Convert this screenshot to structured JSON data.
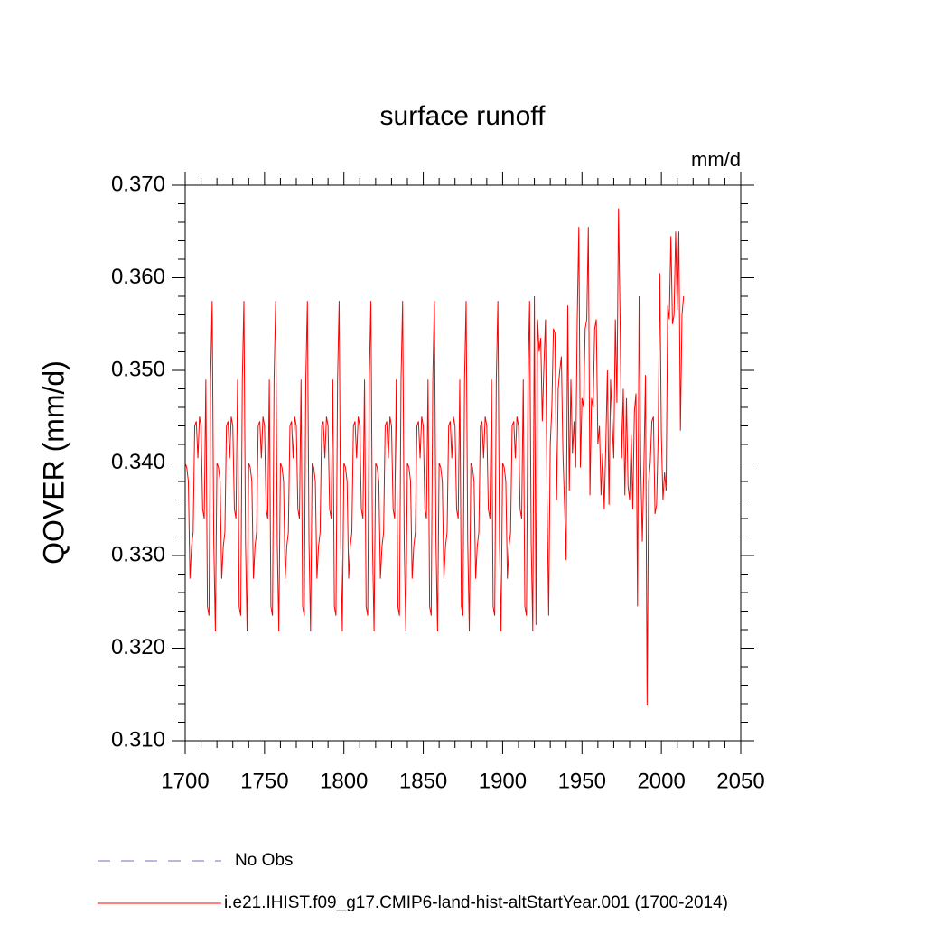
{
  "chart_data": {
    "type": "line",
    "title": "surface runoff",
    "units": "mm/d",
    "y_label": "QOVER  (mm/d)",
    "x": [
      1700,
      1701,
      1702,
      1703,
      1704,
      1705,
      1706,
      1707,
      1708,
      1709,
      1710,
      1711,
      1712,
      1713,
      1714,
      1715,
      1716,
      1717,
      1718,
      1719,
      1720,
      1721,
      1722,
      1723,
      1724,
      1725,
      1726,
      1727,
      1728,
      1729,
      1730,
      1731,
      1732,
      1733,
      1734,
      1735,
      1736,
      1737,
      1738,
      1739,
      1740,
      1741,
      1742,
      1743,
      1744,
      1745,
      1746,
      1747,
      1748,
      1749,
      1750,
      1751,
      1752,
      1753,
      1754,
      1755,
      1756,
      1757,
      1758,
      1759,
      1760,
      1761,
      1762,
      1763,
      1764,
      1765,
      1766,
      1767,
      1768,
      1769,
      1770,
      1771,
      1772,
      1773,
      1774,
      1775,
      1776,
      1777,
      1778,
      1779,
      1780,
      1781,
      1782,
      1783,
      1784,
      1785,
      1786,
      1787,
      1788,
      1789,
      1790,
      1791,
      1792,
      1793,
      1794,
      1795,
      1796,
      1797,
      1798,
      1799,
      1800,
      1801,
      1802,
      1803,
      1804,
      1805,
      1806,
      1807,
      1808,
      1809,
      1810,
      1811,
      1812,
      1813,
      1814,
      1815,
      1816,
      1817,
      1818,
      1819,
      1820,
      1821,
      1822,
      1823,
      1824,
      1825,
      1826,
      1827,
      1828,
      1829,
      1830,
      1831,
      1832,
      1833,
      1834,
      1835,
      1836,
      1837,
      1838,
      1839,
      1840,
      1841,
      1842,
      1843,
      1844,
      1845,
      1846,
      1847,
      1848,
      1849,
      1850,
      1851,
      1852,
      1853,
      1854,
      1855,
      1856,
      1857,
      1858,
      1859,
      1860,
      1861,
      1862,
      1863,
      1864,
      1865,
      1866,
      1867,
      1868,
      1869,
      1870,
      1871,
      1872,
      1873,
      1874,
      1875,
      1876,
      1877,
      1878,
      1879,
      1880,
      1881,
      1882,
      1883,
      1884,
      1885,
      1886,
      1887,
      1888,
      1889,
      1890,
      1891,
      1892,
      1893,
      1894,
      1895,
      1896,
      1897,
      1898,
      1899,
      1900,
      1901,
      1902,
      1903,
      1904,
      1905,
      1906,
      1907,
      1908,
      1909,
      1910,
      1911,
      1912,
      1913,
      1914,
      1915,
      1916,
      1917,
      1918,
      1919,
      1920,
      1921,
      1922,
      1923,
      1924,
      1925,
      1926,
      1927,
      1928,
      1929,
      1930,
      1931,
      1932,
      1933,
      1934,
      1935,
      1936,
      1937,
      1938,
      1939,
      1940,
      1941,
      1942,
      1943,
      1944,
      1945,
      1946,
      1947,
      1948,
      1949,
      1950,
      1951,
      1952,
      1953,
      1954,
      1955,
      1956,
      1957,
      1958,
      1959,
      1960,
      1961,
      1962,
      1963,
      1964,
      1965,
      1966,
      1967,
      1968,
      1969,
      1970,
      1971,
      1972,
      1973,
      1974,
      1975,
      1976,
      1977,
      1978,
      1979,
      1980,
      1981,
      1982,
      1983,
      1984,
      1985,
      1986,
      1987,
      1988,
      1989,
      1990,
      1991,
      1992,
      1993,
      1994,
      1995,
      1996,
      1997,
      1998,
      1999,
      2000,
      2001,
      2002,
      2003,
      2004,
      2005,
      2006,
      2007,
      2008,
      2009,
      2010,
      2011,
      2012,
      2013,
      2014
    ],
    "series": [
      {
        "name": "i.e21.IHIST.f09_g17.CMIP6-land-hist-altStartYear.001 (1700-2014)",
        "color": "#ff0000",
        "values": [
          0.34,
          0.3395,
          0.338,
          0.3275,
          0.331,
          0.3325,
          0.344,
          0.3445,
          0.3405,
          0.345,
          0.344,
          0.335,
          0.334,
          0.349,
          0.3245,
          0.3235,
          0.349,
          0.3575,
          0.3315,
          0.3218,
          0.34,
          0.3395,
          0.338,
          0.3275,
          0.331,
          0.3325,
          0.344,
          0.3445,
          0.3405,
          0.345,
          0.344,
          0.335,
          0.334,
          0.349,
          0.3245,
          0.3235,
          0.349,
          0.3575,
          0.3315,
          0.3218,
          0.34,
          0.3395,
          0.338,
          0.3275,
          0.331,
          0.3325,
          0.344,
          0.3445,
          0.3405,
          0.345,
          0.344,
          0.335,
          0.334,
          0.349,
          0.3245,
          0.3235,
          0.349,
          0.3575,
          0.3315,
          0.3218,
          0.34,
          0.3395,
          0.338,
          0.3275,
          0.331,
          0.3325,
          0.344,
          0.3445,
          0.3405,
          0.345,
          0.344,
          0.335,
          0.334,
          0.349,
          0.3245,
          0.3235,
          0.349,
          0.3575,
          0.3315,
          0.3218,
          0.34,
          0.3395,
          0.338,
          0.3275,
          0.331,
          0.3325,
          0.344,
          0.3445,
          0.3405,
          0.345,
          0.344,
          0.335,
          0.334,
          0.349,
          0.3245,
          0.3235,
          0.349,
          0.3575,
          0.3315,
          0.3218,
          0.34,
          0.3395,
          0.338,
          0.3275,
          0.331,
          0.3325,
          0.344,
          0.3445,
          0.3405,
          0.345,
          0.344,
          0.335,
          0.334,
          0.349,
          0.3245,
          0.3235,
          0.349,
          0.3575,
          0.3315,
          0.3218,
          0.34,
          0.3395,
          0.338,
          0.3275,
          0.331,
          0.3325,
          0.344,
          0.3445,
          0.3405,
          0.345,
          0.344,
          0.335,
          0.334,
          0.349,
          0.3245,
          0.3235,
          0.349,
          0.3575,
          0.3315,
          0.3218,
          0.34,
          0.3395,
          0.338,
          0.3275,
          0.331,
          0.3325,
          0.344,
          0.3445,
          0.3405,
          0.345,
          0.344,
          0.335,
          0.334,
          0.349,
          0.3245,
          0.3235,
          0.349,
          0.3575,
          0.3315,
          0.3218,
          0.34,
          0.3395,
          0.338,
          0.3275,
          0.331,
          0.3325,
          0.344,
          0.3445,
          0.3405,
          0.345,
          0.344,
          0.335,
          0.334,
          0.349,
          0.3245,
          0.3235,
          0.349,
          0.3575,
          0.3315,
          0.3218,
          0.34,
          0.3395,
          0.338,
          0.3275,
          0.331,
          0.3325,
          0.344,
          0.3445,
          0.3405,
          0.345,
          0.344,
          0.335,
          0.334,
          0.349,
          0.3245,
          0.3235,
          0.349,
          0.3575,
          0.3315,
          0.3218,
          0.34,
          0.3395,
          0.338,
          0.3275,
          0.331,
          0.3325,
          0.344,
          0.3445,
          0.3405,
          0.345,
          0.344,
          0.335,
          0.334,
          0.349,
          0.3245,
          0.3235,
          0.349,
          0.3575,
          0.3315,
          0.3218,
          0.358,
          0.3225,
          0.3555,
          0.352,
          0.3535,
          0.3445,
          0.3505,
          0.3555,
          0.336,
          0.3235,
          0.342,
          0.346,
          0.3545,
          0.354,
          0.336,
          0.348,
          0.35,
          0.3515,
          0.341,
          0.3355,
          0.3295,
          0.357,
          0.337,
          0.349,
          0.341,
          0.3445,
          0.3395,
          0.3555,
          0.3655,
          0.3395,
          0.347,
          0.346,
          0.3545,
          0.3555,
          0.3655,
          0.3365,
          0.347,
          0.346,
          0.3545,
          0.3555,
          0.342,
          0.344,
          0.3365,
          0.341,
          0.335,
          0.342,
          0.35,
          0.3355,
          0.349,
          0.3445,
          0.3405,
          0.3555,
          0.3465,
          0.3675,
          0.3555,
          0.3405,
          0.348,
          0.3365,
          0.347,
          0.3375,
          0.336,
          0.343,
          0.335,
          0.3455,
          0.3475,
          0.3245,
          0.358,
          0.34,
          0.3315,
          0.3395,
          0.3495,
          0.3138,
          0.338,
          0.34,
          0.3445,
          0.345,
          0.3345,
          0.3355,
          0.343,
          0.3605,
          0.343,
          0.336,
          0.339,
          0.337,
          0.357,
          0.3555,
          0.3645,
          0.355,
          0.356,
          0.365,
          0.3565,
          0.365,
          0.3435,
          0.356,
          0.358
        ]
      }
    ],
    "legend_extra": {
      "name": "No Obs",
      "color": "#7b68c8",
      "style": "dashed"
    },
    "xlim": [
      1700,
      2050
    ],
    "xticks": [
      1700,
      1750,
      1800,
      1850,
      1900,
      1950,
      2000,
      2050
    ],
    "ylim": [
      0.31,
      0.37
    ],
    "yticks": [
      {
        "value": 0.31,
        "label": "0.310"
      },
      {
        "value": 0.32,
        "label": "0.320"
      },
      {
        "value": 0.33,
        "label": "0.330"
      },
      {
        "value": 0.34,
        "label": "0.340"
      },
      {
        "value": 0.35,
        "label": "0.350"
      },
      {
        "value": 0.36,
        "label": "0.360"
      },
      {
        "value": 0.37,
        "label": "0.370"
      }
    ]
  }
}
